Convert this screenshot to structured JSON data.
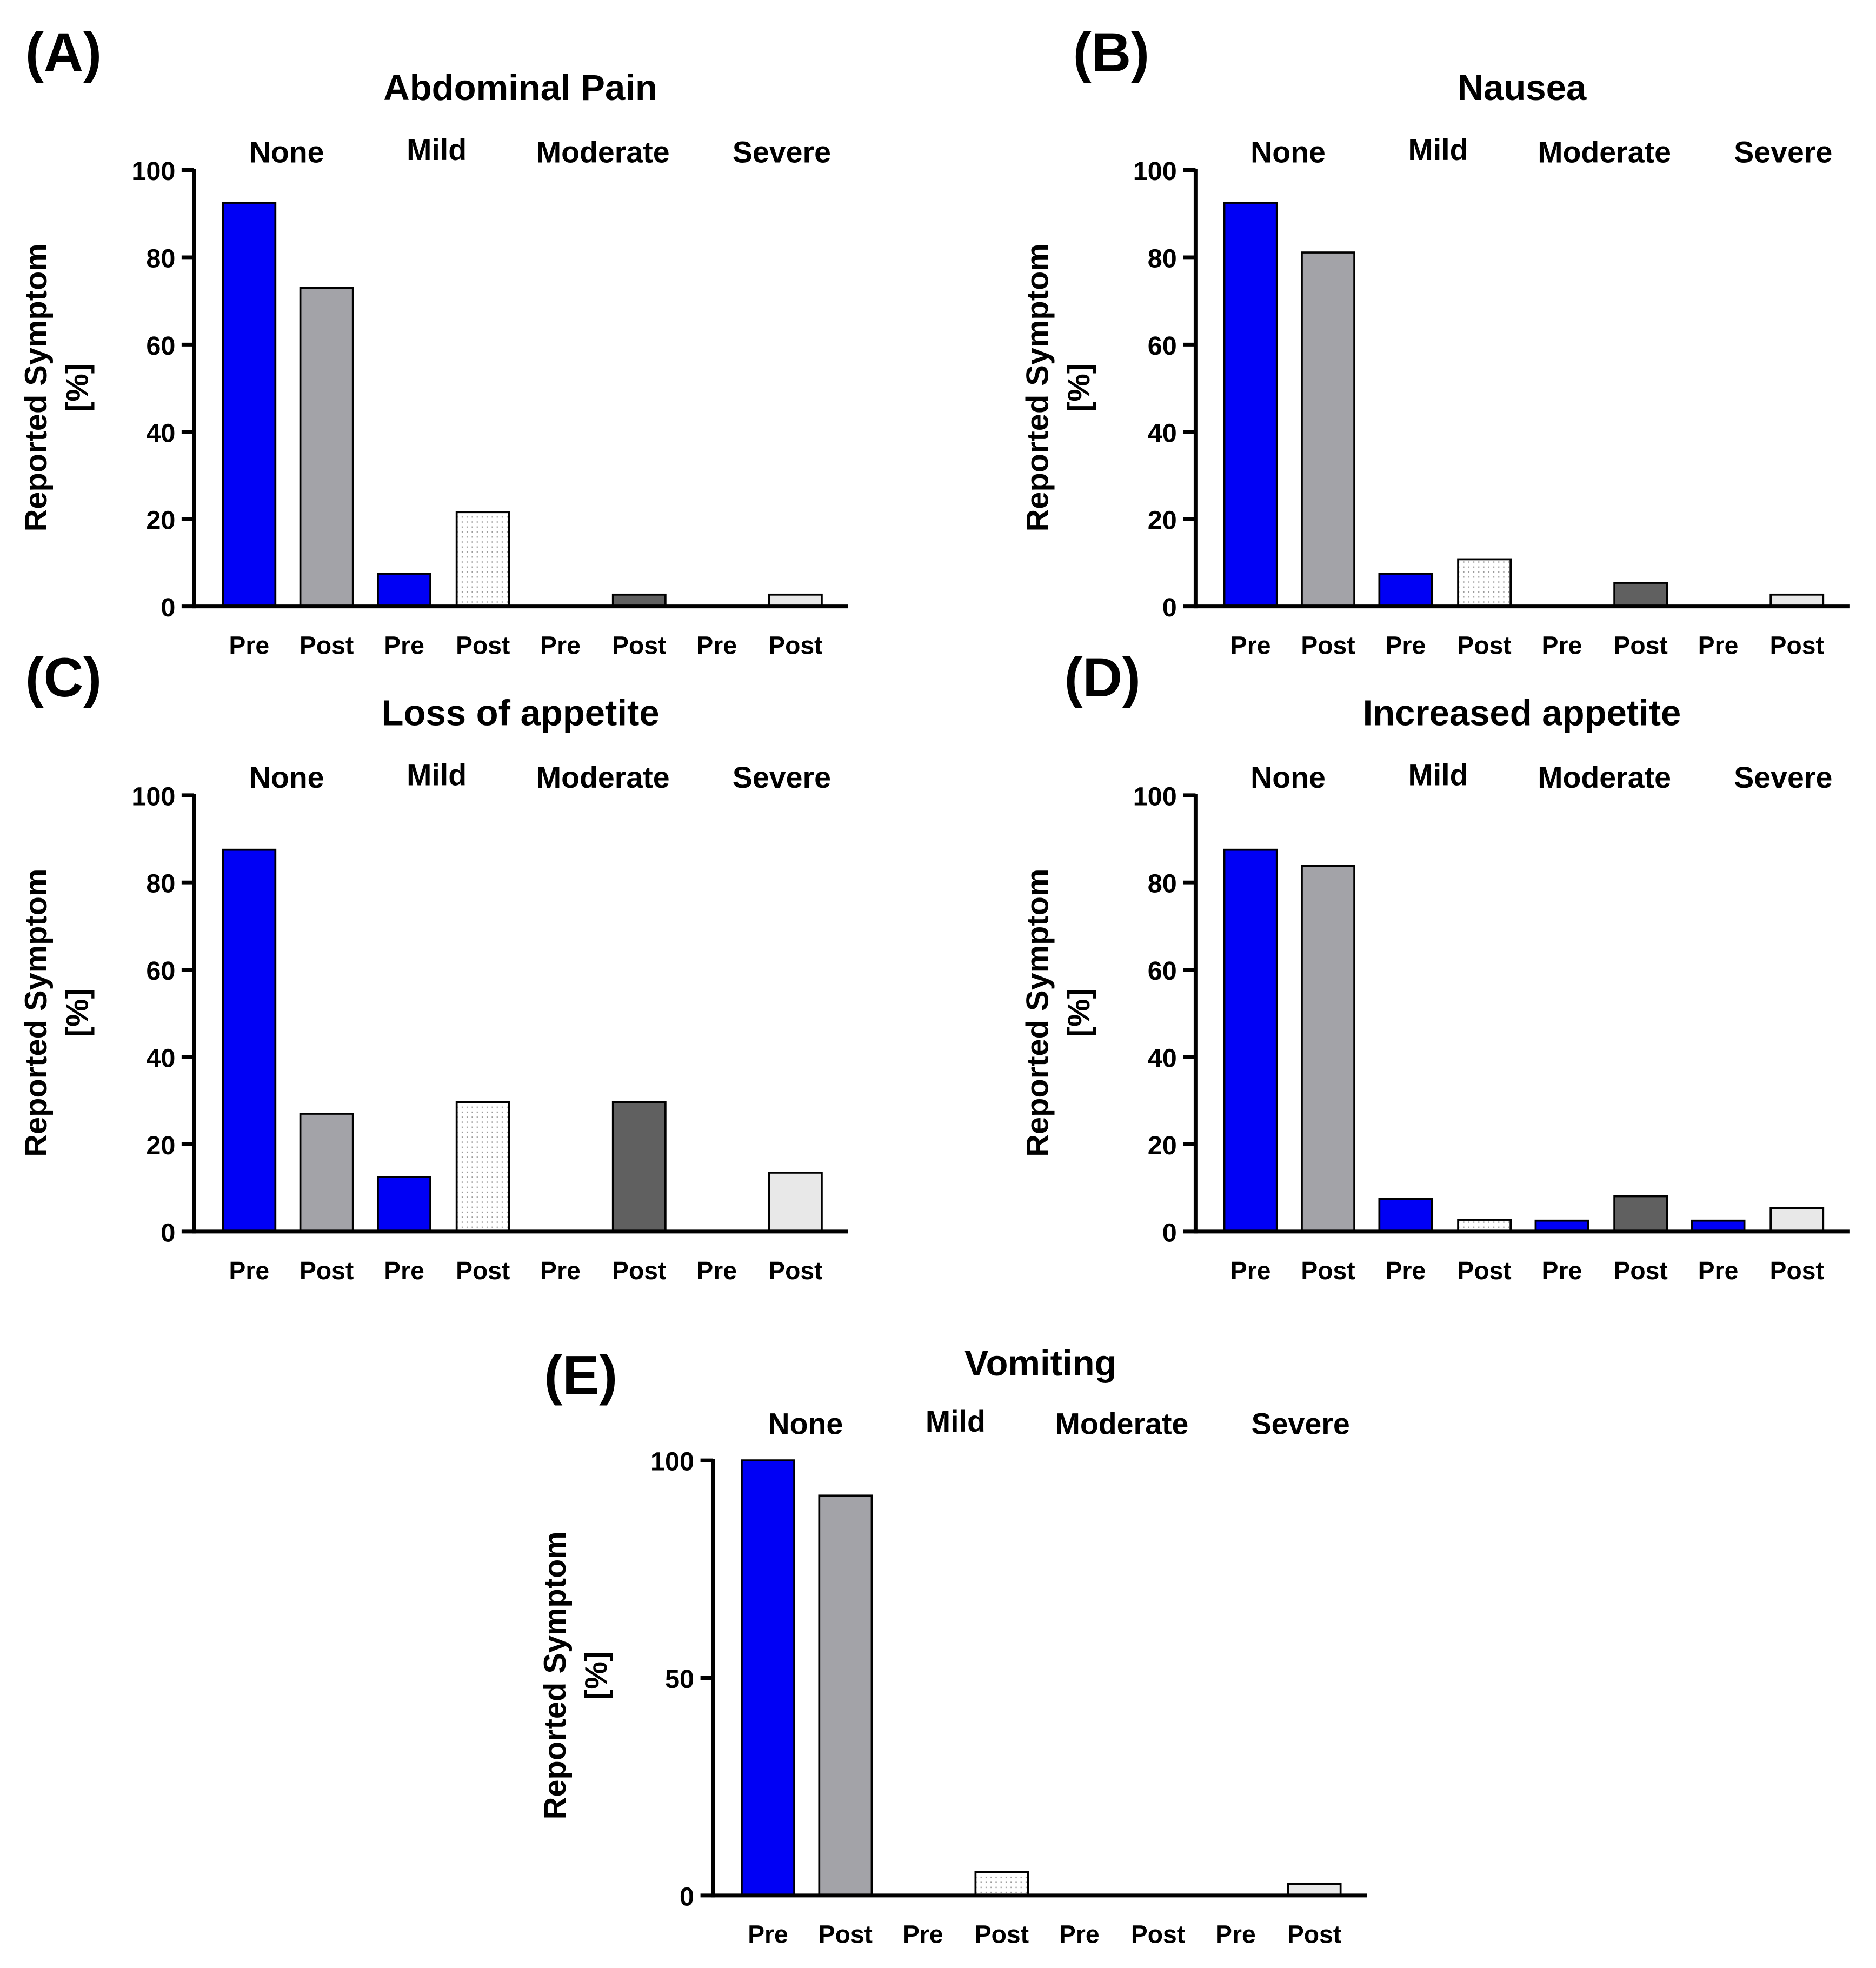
{
  "colors": {
    "pre": "#0000f5",
    "post_none": "#a3a3a8",
    "post_mild": "#ffffff",
    "post_moderate": "#606060",
    "post_severe": "#e8e8e8"
  },
  "chart_data": [
    {
      "type": "bar",
      "panel": "(A)",
      "title": "Abdominal Pain",
      "ylabel": "Reported Symptom\n[%]",
      "ylabel_lines": [
        "Reported Symptom",
        "[%]"
      ],
      "ylim": [
        0,
        100
      ],
      "yticks": [
        0,
        20,
        40,
        60,
        80,
        100
      ],
      "groups": [
        "None",
        "Mild",
        "Moderate",
        "Severe"
      ],
      "categories": [
        "Pre",
        "Post",
        "Pre",
        "Post",
        "Pre",
        "Post",
        "Pre",
        "Post"
      ],
      "values": [
        92.5,
        73,
        7.5,
        21.6,
        0,
        2.7,
        0,
        2.7
      ]
    },
    {
      "type": "bar",
      "panel": "(B)",
      "title": "Nausea",
      "ylabel_lines": [
        "Reported Symptom",
        "[%]"
      ],
      "ylim": [
        0,
        100
      ],
      "yticks": [
        0,
        20,
        40,
        60,
        80,
        100
      ],
      "groups": [
        "None",
        "Mild",
        "Moderate",
        "Severe"
      ],
      "categories": [
        "Pre",
        "Post",
        "Pre",
        "Post",
        "Pre",
        "Post",
        "Pre",
        "Post"
      ],
      "values": [
        92.5,
        81.1,
        7.5,
        10.8,
        0,
        5.4,
        0,
        2.7
      ]
    },
    {
      "type": "bar",
      "panel": "(C)",
      "title": "Loss of appetite",
      "ylabel_lines": [
        "Reported Symptom",
        "[%]"
      ],
      "ylim": [
        0,
        100
      ],
      "yticks": [
        0,
        20,
        40,
        60,
        80,
        100
      ],
      "groups": [
        "None",
        "Mild",
        "Moderate",
        "Severe"
      ],
      "categories": [
        "Pre",
        "Post",
        "Pre",
        "Post",
        "Pre",
        "Post",
        "Pre",
        "Post"
      ],
      "values": [
        87.5,
        27,
        12.5,
        29.7,
        0,
        29.7,
        0,
        13.5
      ]
    },
    {
      "type": "bar",
      "panel": "(D)",
      "title": "Increased appetite",
      "ylabel_lines": [
        "Reported Symptom",
        "[%]"
      ],
      "ylim": [
        0,
        100
      ],
      "yticks": [
        0,
        20,
        40,
        60,
        80,
        100
      ],
      "groups": [
        "None",
        "Mild",
        "Moderate",
        "Severe"
      ],
      "categories": [
        "Pre",
        "Post",
        "Pre",
        "Post",
        "Pre",
        "Post",
        "Pre",
        "Post"
      ],
      "values": [
        87.5,
        83.8,
        7.5,
        2.7,
        2.5,
        8.1,
        2.5,
        5.4
      ]
    },
    {
      "type": "bar",
      "panel": "(E)",
      "title": "Vomiting",
      "ylabel_lines": [
        "Reported Symptom",
        "[%]"
      ],
      "ylim": [
        0,
        100
      ],
      "yticks": [
        0,
        50,
        100
      ],
      "groups": [
        "None",
        "Mild",
        "Moderate",
        "Severe"
      ],
      "categories": [
        "Pre",
        "Post",
        "Pre",
        "Post",
        "Pre",
        "Post",
        "Pre",
        "Post"
      ],
      "values": [
        100,
        91.9,
        0,
        5.4,
        0,
        0,
        0,
        2.7
      ]
    }
  ]
}
